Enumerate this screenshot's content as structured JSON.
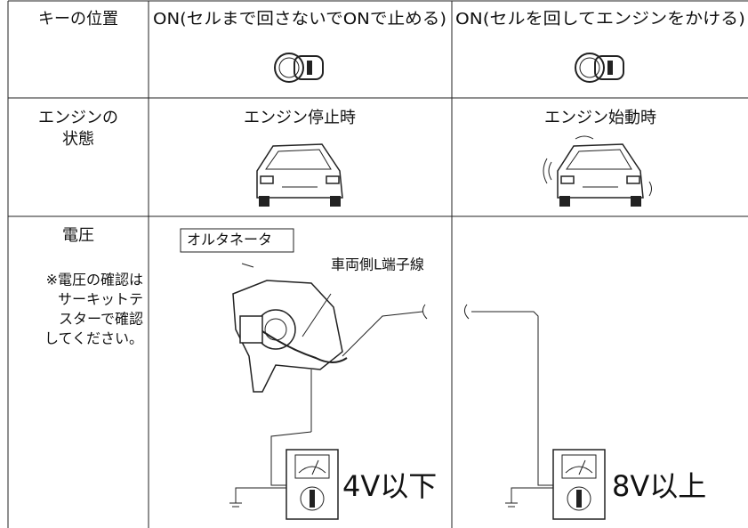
{
  "table": {
    "header": [
      "キーの位置",
      "ON(セルまで回さないでONで止める)",
      "ON(セルを回してエンジンをかける)"
    ],
    "rows": [
      {
        "label": [
          "エンジンの",
          "状態"
        ],
        "cells": [
          "エンジン停止時",
          "エンジン始動時"
        ]
      },
      {
        "label": [
          "電圧"
        ],
        "note": [
          "※電圧の確認は",
          "サーキットテ",
          "スターで確認",
          "してください。"
        ],
        "diagram": {
          "alternator_label": "オルタネータ",
          "wire_label": "車両側L端子線",
          "reading_off": "4V以下",
          "reading_on": "8V以上"
        }
      }
    ]
  }
}
